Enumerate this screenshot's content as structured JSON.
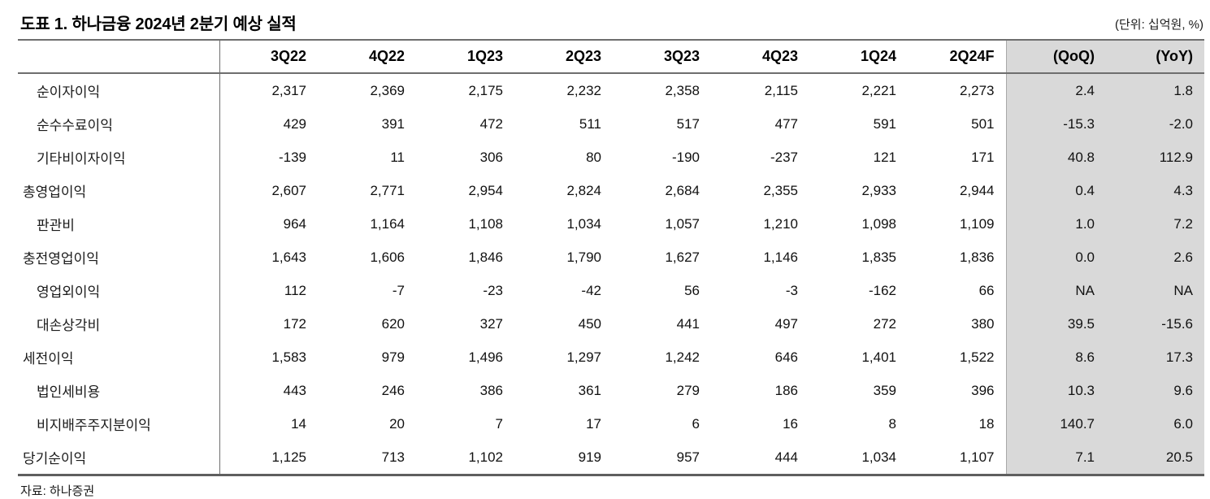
{
  "meta": {
    "title": "도표 1. 하나금융 2024년 2분기 예상 실적",
    "unit_note": "(단위: 십억원, %)",
    "source": "자료: 하나증권"
  },
  "colors": {
    "shaded_band": "#d9d9d9",
    "rule_heavy": "#6e6e6e",
    "text": "#111111"
  },
  "table": {
    "columns": [
      "",
      "3Q22",
      "4Q22",
      "1Q23",
      "2Q23",
      "3Q23",
      "4Q23",
      "1Q24",
      "2Q24F",
      "(QoQ)",
      "(YoY)"
    ],
    "shaded_columns": [
      "(QoQ)",
      "(YoY)"
    ],
    "rows": [
      {
        "label": "순이자이익",
        "indent": true,
        "values": [
          "2,317",
          "2,369",
          "2,175",
          "2,232",
          "2,358",
          "2,115",
          "2,221",
          "2,273",
          "2.4",
          "1.8"
        ]
      },
      {
        "label": "순수수료이익",
        "indent": true,
        "values": [
          "429",
          "391",
          "472",
          "511",
          "517",
          "477",
          "591",
          "501",
          "-15.3",
          "-2.0"
        ]
      },
      {
        "label": "기타비이자이익",
        "indent": true,
        "values": [
          "-139",
          "11",
          "306",
          "80",
          "-190",
          "-237",
          "121",
          "171",
          "40.8",
          "112.9"
        ]
      },
      {
        "label": "총영업이익",
        "indent": false,
        "values": [
          "2,607",
          "2,771",
          "2,954",
          "2,824",
          "2,684",
          "2,355",
          "2,933",
          "2,944",
          "0.4",
          "4.3"
        ]
      },
      {
        "label": "판관비",
        "indent": true,
        "values": [
          "964",
          "1,164",
          "1,108",
          "1,034",
          "1,057",
          "1,210",
          "1,098",
          "1,109",
          "1.0",
          "7.2"
        ]
      },
      {
        "label": "충전영업이익",
        "indent": false,
        "values": [
          "1,643",
          "1,606",
          "1,846",
          "1,790",
          "1,627",
          "1,146",
          "1,835",
          "1,836",
          "0.0",
          "2.6"
        ]
      },
      {
        "label": "영업외이익",
        "indent": true,
        "values": [
          "112",
          "-7",
          "-23",
          "-42",
          "56",
          "-3",
          "-162",
          "66",
          "NA",
          "NA"
        ]
      },
      {
        "label": "대손상각비",
        "indent": true,
        "values": [
          "172",
          "620",
          "327",
          "450",
          "441",
          "497",
          "272",
          "380",
          "39.5",
          "-15.6"
        ]
      },
      {
        "label": "세전이익",
        "indent": false,
        "values": [
          "1,583",
          "979",
          "1,496",
          "1,297",
          "1,242",
          "646",
          "1,401",
          "1,522",
          "8.6",
          "17.3"
        ]
      },
      {
        "label": "법인세비용",
        "indent": true,
        "values": [
          "443",
          "246",
          "386",
          "361",
          "279",
          "186",
          "359",
          "396",
          "10.3",
          "9.6"
        ]
      },
      {
        "label": "비지배주주지분이익",
        "indent": true,
        "values": [
          "14",
          "20",
          "7",
          "17",
          "6",
          "16",
          "8",
          "18",
          "140.7",
          "6.0"
        ]
      },
      {
        "label": "당기순이익",
        "indent": false,
        "values": [
          "1,125",
          "713",
          "1,102",
          "919",
          "957",
          "444",
          "1,034",
          "1,107",
          "7.1",
          "20.5"
        ]
      }
    ]
  }
}
